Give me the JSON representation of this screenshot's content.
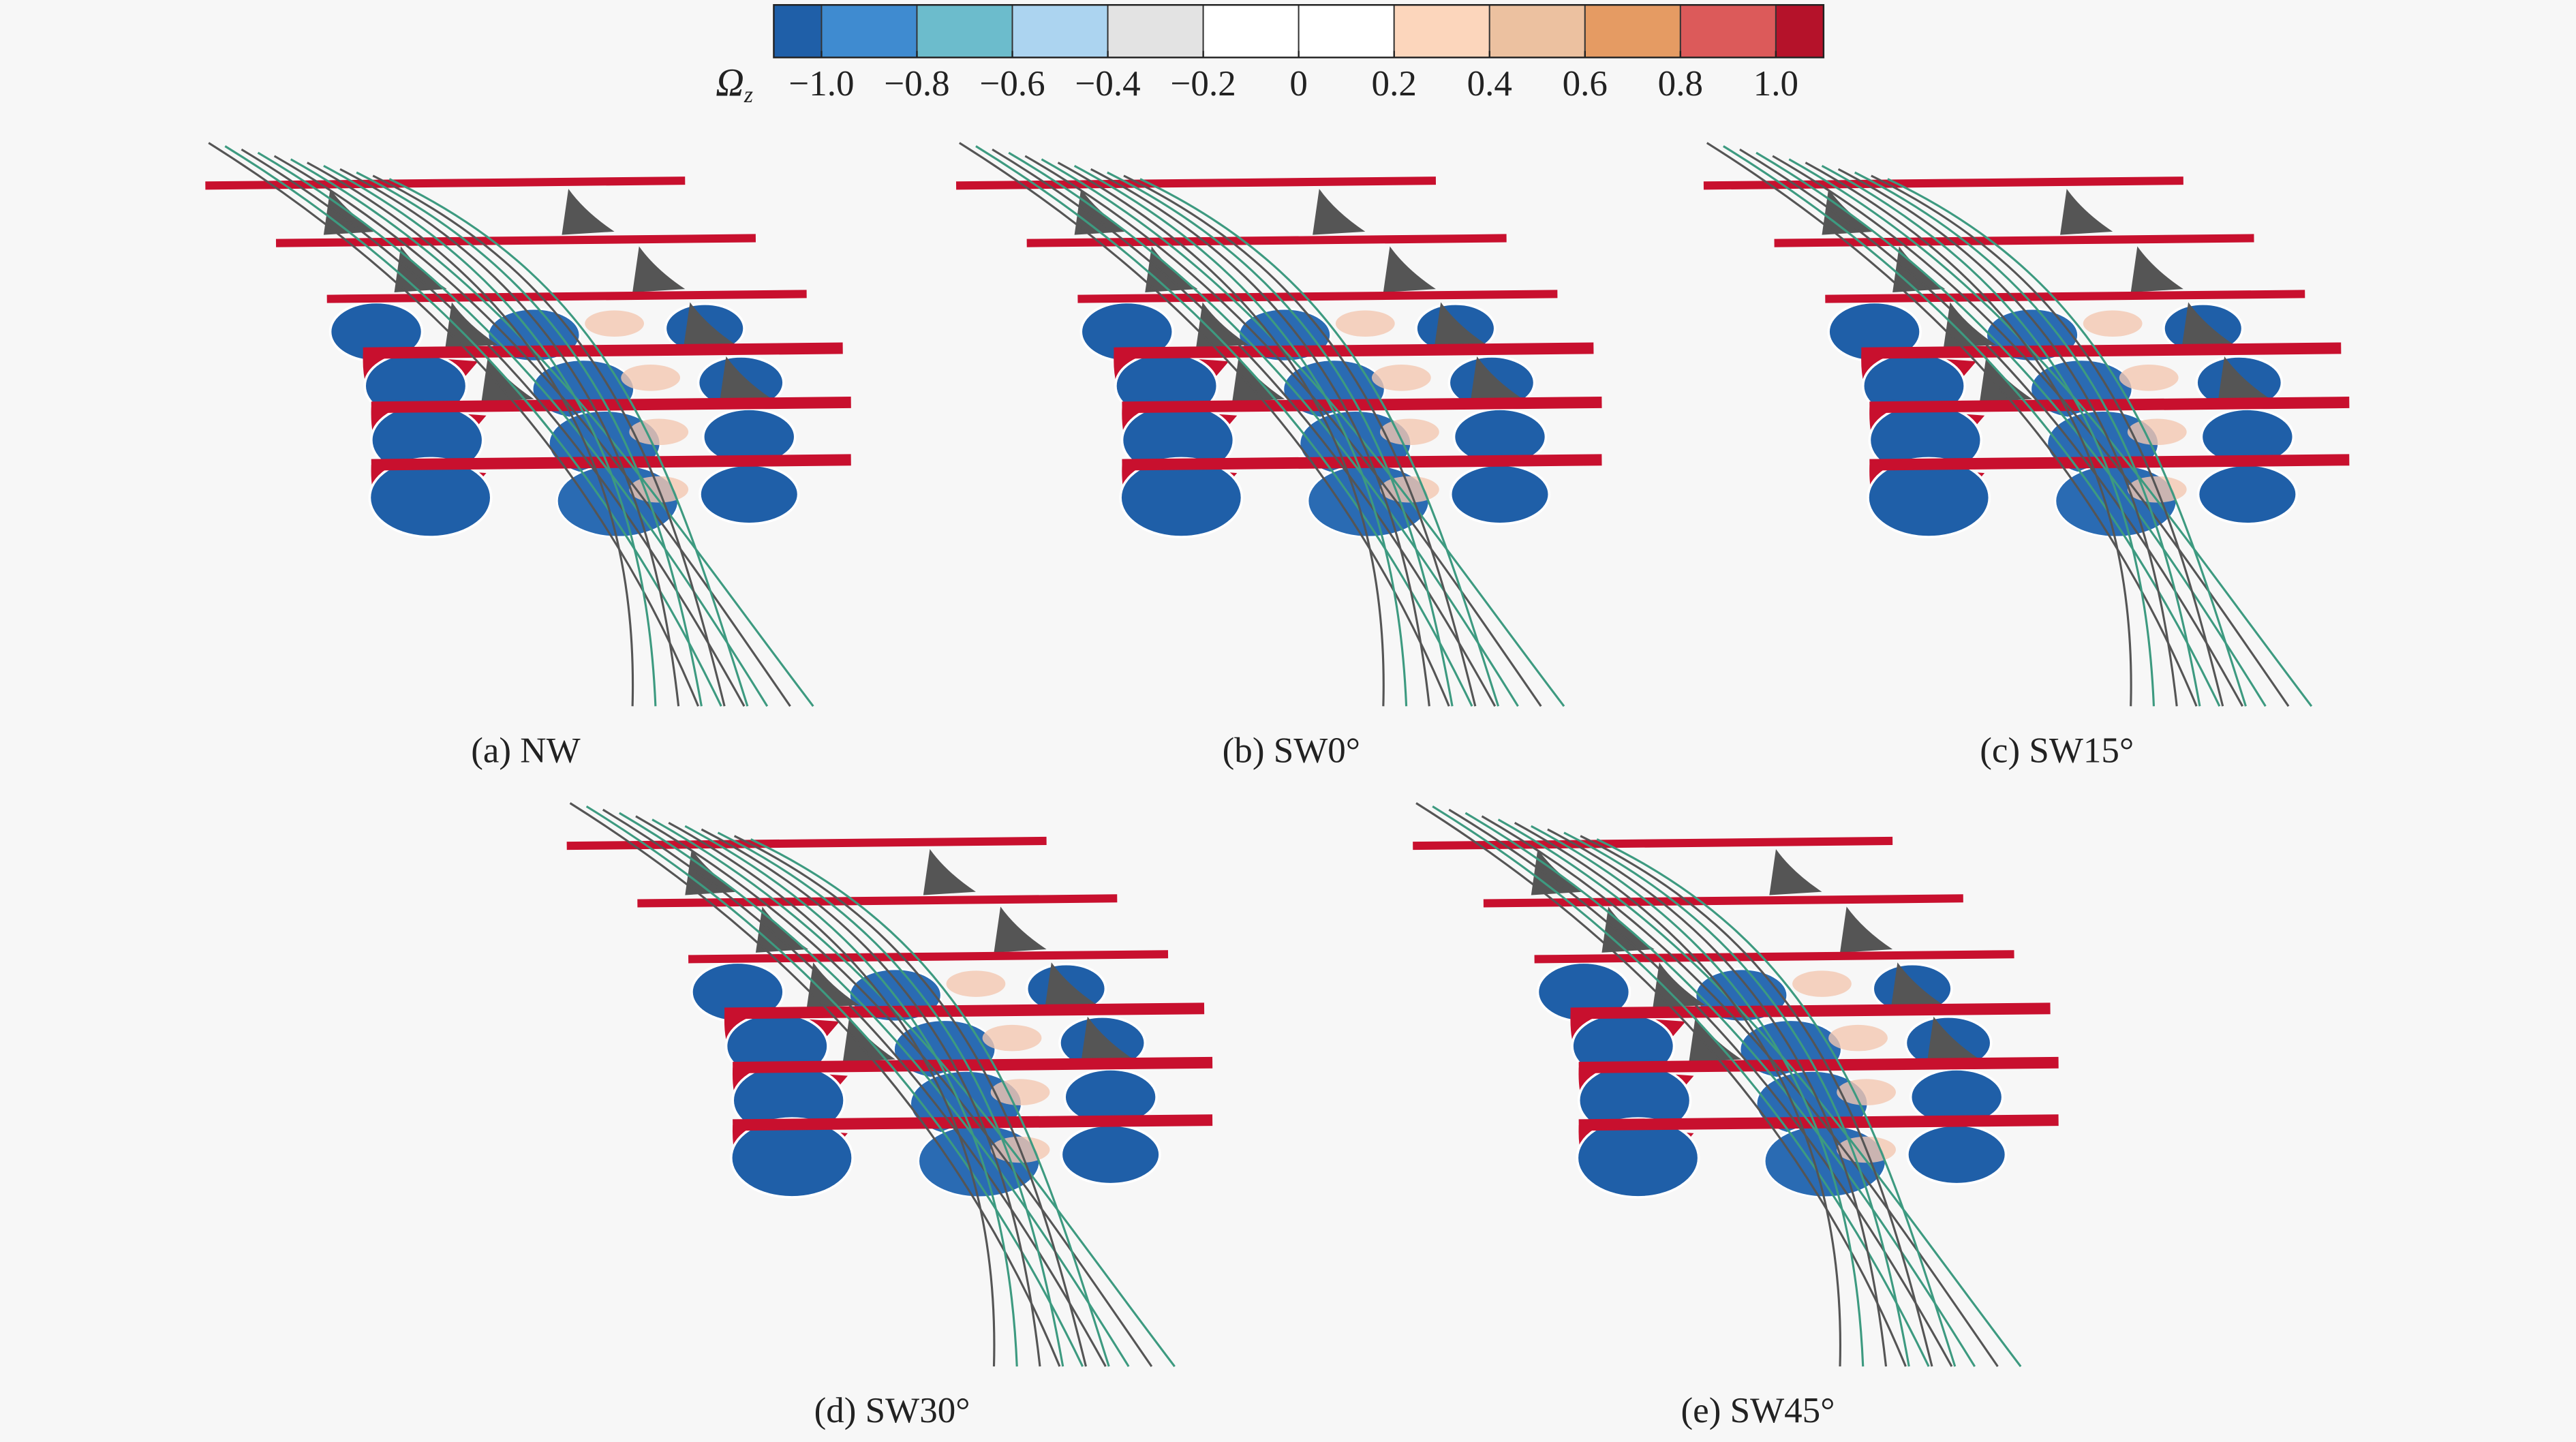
{
  "colorbar": {
    "symbol": "Ω",
    "subscript": "z",
    "lim": [
      -1.1,
      1.1
    ],
    "ticks": [
      {
        "value": -1.0,
        "label": "−1.0"
      },
      {
        "value": -0.8,
        "label": "−0.8"
      },
      {
        "value": -0.6,
        "label": "−0.6"
      },
      {
        "value": -0.4,
        "label": "−0.4"
      },
      {
        "value": -0.2,
        "label": "−0.2"
      },
      0,
      {
        "value": 0.2,
        "label": "0.2"
      },
      {
        "value": 0.4,
        "label": "0.4"
      },
      {
        "value": 0.6,
        "label": "0.6"
      },
      {
        "value": 0.8,
        "label": "0.8"
      },
      {
        "value": 1.0,
        "label": "1.0"
      }
    ],
    "colors": [
      "#1f5fa8",
      "#3f8bd0",
      "#6cbccc",
      "#acd4f0",
      "#e3e3e3",
      "#ffffff",
      "#ffffff",
      "#fcd6bc",
      "#ecc1a0",
      "#e59b63",
      "#dc5a5a",
      "#b5122a"
    ]
  },
  "panels": [
    {
      "caption": "(a) NW"
    },
    {
      "caption": "(b) SW0°"
    },
    {
      "caption": "(c) SW15°"
    },
    {
      "caption": "(d) SW30°"
    },
    {
      "caption": "(e) SW45°"
    }
  ]
}
